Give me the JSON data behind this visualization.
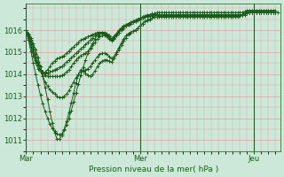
{
  "title": "Pression niveau de la mer( hPa )",
  "x_ticks_labels": [
    "Mar",
    "Mer",
    "Jeu"
  ],
  "x_ticks_pos": [
    0,
    48,
    96
  ],
  "n_total": 108,
  "ylim": [
    1010.5,
    1017.2
  ],
  "yticks": [
    1011,
    1012,
    1013,
    1014,
    1015,
    1016
  ],
  "bg_color": "#cce8d8",
  "line_color": "#1a5c1a",
  "grid_color": "#e8a0a0",
  "vline_color": "#2a5c2a",
  "series": [
    [
      1016.0,
      1015.85,
      1015.65,
      1015.4,
      1015.1,
      1014.75,
      1014.35,
      1013.9,
      1013.4,
      1012.85,
      1012.3,
      1011.8,
      1011.35,
      1011.05,
      1011.05,
      1011.2,
      1011.5,
      1011.85,
      1012.25,
      1012.7,
      1013.15,
      1013.6,
      1014.0,
      1014.2,
      1014.15,
      1014.05,
      1013.95,
      1013.9,
      1014.0,
      1014.15,
      1014.35,
      1014.5,
      1014.6,
      1014.65,
      1014.65,
      1014.6,
      1014.55,
      1014.7,
      1014.9,
      1015.1,
      1015.3,
      1015.5,
      1015.65,
      1015.8,
      1015.9,
      1015.95,
      1016.0,
      1016.1,
      1016.2,
      1016.3,
      1016.4,
      1016.45,
      1016.5,
      1016.55,
      1016.6,
      1016.6,
      1016.6,
      1016.6,
      1016.6,
      1016.6,
      1016.6,
      1016.6,
      1016.6,
      1016.6,
      1016.6,
      1016.6,
      1016.6,
      1016.6,
      1016.6,
      1016.6,
      1016.6,
      1016.6,
      1016.6,
      1016.6,
      1016.6,
      1016.6,
      1016.6,
      1016.6,
      1016.6,
      1016.6,
      1016.6,
      1016.6,
      1016.6,
      1016.6,
      1016.6,
      1016.6,
      1016.6,
      1016.6,
      1016.6,
      1016.6,
      1016.65,
      1016.7,
      1016.75,
      1016.8,
      1016.8,
      1016.8,
      1016.8,
      1016.8,
      1016.8,
      1016.8,
      1016.8,
      1016.8,
      1016.8,
      1016.8,
      1016.8,
      1016.8
    ],
    [
      1016.0,
      1015.8,
      1015.55,
      1015.25,
      1014.9,
      1014.55,
      1014.2,
      1013.9,
      1013.65,
      1013.45,
      1013.3,
      1013.2,
      1013.1,
      1013.0,
      1012.95,
      1012.95,
      1013.0,
      1013.1,
      1013.25,
      1013.45,
      1013.65,
      1013.85,
      1014.0,
      1014.1,
      1014.15,
      1014.2,
      1014.25,
      1014.35,
      1014.5,
      1014.65,
      1014.8,
      1014.9,
      1014.95,
      1014.95,
      1014.9,
      1014.8,
      1014.7,
      1014.8,
      1015.0,
      1015.2,
      1015.4,
      1015.6,
      1015.75,
      1015.85,
      1015.9,
      1015.95,
      1016.0,
      1016.1,
      1016.2,
      1016.3,
      1016.4,
      1016.45,
      1016.5,
      1016.55,
      1016.6,
      1016.6,
      1016.65,
      1016.65,
      1016.65,
      1016.65,
      1016.65,
      1016.65,
      1016.65,
      1016.65,
      1016.65,
      1016.65,
      1016.65,
      1016.65,
      1016.65,
      1016.65,
      1016.65,
      1016.65,
      1016.65,
      1016.65,
      1016.65,
      1016.65,
      1016.65,
      1016.65,
      1016.65,
      1016.65,
      1016.65,
      1016.65,
      1016.65,
      1016.65,
      1016.65,
      1016.65,
      1016.65,
      1016.65,
      1016.65,
      1016.65,
      1016.7,
      1016.7,
      1016.75,
      1016.8,
      1016.8,
      1016.8,
      1016.8,
      1016.8,
      1016.8,
      1016.8,
      1016.8,
      1016.8,
      1016.8,
      1016.8,
      1016.8,
      1016.8
    ],
    [
      1016.0,
      1015.75,
      1015.45,
      1015.1,
      1014.75,
      1014.45,
      1014.2,
      1014.05,
      1013.95,
      1013.9,
      1013.9,
      1013.9,
      1013.9,
      1013.9,
      1013.9,
      1013.95,
      1014.0,
      1014.1,
      1014.2,
      1014.35,
      1014.5,
      1014.65,
      1014.75,
      1014.85,
      1014.9,
      1014.95,
      1015.05,
      1015.15,
      1015.3,
      1015.45,
      1015.6,
      1015.7,
      1015.75,
      1015.75,
      1015.7,
      1015.6,
      1015.5,
      1015.6,
      1015.75,
      1015.9,
      1016.05,
      1016.15,
      1016.2,
      1016.25,
      1016.3,
      1016.35,
      1016.4,
      1016.45,
      1016.5,
      1016.55,
      1016.6,
      1016.6,
      1016.65,
      1016.65,
      1016.7,
      1016.7,
      1016.7,
      1016.7,
      1016.7,
      1016.7,
      1016.7,
      1016.7,
      1016.7,
      1016.7,
      1016.7,
      1016.7,
      1016.7,
      1016.7,
      1016.7,
      1016.7,
      1016.7,
      1016.7,
      1016.7,
      1016.7,
      1016.7,
      1016.7,
      1016.7,
      1016.7,
      1016.7,
      1016.7,
      1016.7,
      1016.7,
      1016.7,
      1016.7,
      1016.7,
      1016.7,
      1016.7,
      1016.7,
      1016.7,
      1016.7,
      1016.7,
      1016.7,
      1016.75,
      1016.8,
      1016.8,
      1016.8,
      1016.8,
      1016.8,
      1016.8,
      1016.8,
      1016.8,
      1016.8,
      1016.8,
      1016.8,
      1016.8,
      1016.8
    ],
    [
      1016.0,
      1015.7,
      1015.35,
      1015.0,
      1014.65,
      1014.4,
      1014.2,
      1014.1,
      1014.05,
      1014.05,
      1014.1,
      1014.15,
      1014.2,
      1014.25,
      1014.3,
      1014.35,
      1014.45,
      1014.55,
      1014.65,
      1014.75,
      1014.85,
      1014.95,
      1015.05,
      1015.15,
      1015.25,
      1015.35,
      1015.45,
      1015.55,
      1015.65,
      1015.75,
      1015.8,
      1015.85,
      1015.85,
      1015.8,
      1015.75,
      1015.65,
      1015.55,
      1015.65,
      1015.8,
      1015.95,
      1016.05,
      1016.15,
      1016.2,
      1016.25,
      1016.3,
      1016.35,
      1016.4,
      1016.45,
      1016.5,
      1016.55,
      1016.6,
      1016.6,
      1016.65,
      1016.65,
      1016.7,
      1016.7,
      1016.7,
      1016.7,
      1016.7,
      1016.7,
      1016.7,
      1016.7,
      1016.7,
      1016.7,
      1016.7,
      1016.7,
      1016.7,
      1016.7,
      1016.7,
      1016.7,
      1016.7,
      1016.7,
      1016.7,
      1016.7,
      1016.7,
      1016.7,
      1016.7,
      1016.7,
      1016.7,
      1016.7,
      1016.7,
      1016.7,
      1016.7,
      1016.7,
      1016.7,
      1016.7,
      1016.7,
      1016.7,
      1016.7,
      1016.7,
      1016.7,
      1016.7,
      1016.75,
      1016.8,
      1016.8,
      1016.8,
      1016.8,
      1016.8,
      1016.8,
      1016.8,
      1016.8,
      1016.8,
      1016.8,
      1016.8,
      1016.8,
      1016.8
    ],
    [
      1016.0,
      1015.65,
      1015.25,
      1014.85,
      1014.5,
      1014.25,
      1014.1,
      1014.05,
      1014.1,
      1014.2,
      1014.35,
      1014.5,
      1014.6,
      1014.7,
      1014.75,
      1014.8,
      1014.85,
      1014.95,
      1015.05,
      1015.15,
      1015.25,
      1015.35,
      1015.45,
      1015.55,
      1015.6,
      1015.65,
      1015.7,
      1015.75,
      1015.8,
      1015.85,
      1015.9,
      1015.9,
      1015.9,
      1015.85,
      1015.8,
      1015.7,
      1015.6,
      1015.7,
      1015.85,
      1016.0,
      1016.1,
      1016.2,
      1016.25,
      1016.3,
      1016.35,
      1016.4,
      1016.45,
      1016.5,
      1016.55,
      1016.6,
      1016.6,
      1016.65,
      1016.65,
      1016.7,
      1016.7,
      1016.7,
      1016.7,
      1016.7,
      1016.7,
      1016.7,
      1016.7,
      1016.7,
      1016.7,
      1016.7,
      1016.7,
      1016.7,
      1016.7,
      1016.7,
      1016.7,
      1016.7,
      1016.7,
      1016.7,
      1016.7,
      1016.7,
      1016.7,
      1016.7,
      1016.7,
      1016.7,
      1016.7,
      1016.7,
      1016.7,
      1016.7,
      1016.7,
      1016.7,
      1016.7,
      1016.7,
      1016.7,
      1016.7,
      1016.7,
      1016.7,
      1016.7,
      1016.7,
      1016.7,
      1016.75,
      1016.8,
      1016.8,
      1016.8,
      1016.8,
      1016.8,
      1016.8,
      1016.8,
      1016.8,
      1016.8,
      1016.8,
      1016.8,
      1016.8,
      1016.8
    ],
    [
      1016.0,
      1015.55,
      1015.05,
      1014.5,
      1014.0,
      1013.5,
      1013.05,
      1012.65,
      1012.3,
      1012.0,
      1011.75,
      1011.55,
      1011.4,
      1011.3,
      1011.25,
      1011.3,
      1011.45,
      1011.7,
      1012.0,
      1012.35,
      1012.75,
      1013.15,
      1013.55,
      1013.95,
      1014.3,
      1014.65,
      1014.95,
      1015.2,
      1015.4,
      1015.6,
      1015.75,
      1015.85,
      1015.9,
      1015.9,
      1015.85,
      1015.75,
      1015.6,
      1015.65,
      1015.75,
      1015.9,
      1016.0,
      1016.1,
      1016.2,
      1016.3,
      1016.35,
      1016.4,
      1016.45,
      1016.5,
      1016.55,
      1016.6,
      1016.65,
      1016.7,
      1016.7,
      1016.75,
      1016.75,
      1016.8,
      1016.8,
      1016.8,
      1016.8,
      1016.8,
      1016.8,
      1016.8,
      1016.8,
      1016.8,
      1016.8,
      1016.8,
      1016.8,
      1016.8,
      1016.8,
      1016.8,
      1016.8,
      1016.8,
      1016.8,
      1016.8,
      1016.8,
      1016.8,
      1016.8,
      1016.8,
      1016.8,
      1016.8,
      1016.8,
      1016.8,
      1016.8,
      1016.8,
      1016.8,
      1016.8,
      1016.8,
      1016.8,
      1016.8,
      1016.8,
      1016.8,
      1016.8,
      1016.85,
      1016.9,
      1016.9,
      1016.9,
      1016.9,
      1016.9,
      1016.9,
      1016.9,
      1016.9,
      1016.9,
      1016.9,
      1016.9,
      1016.9,
      1016.9
    ]
  ]
}
